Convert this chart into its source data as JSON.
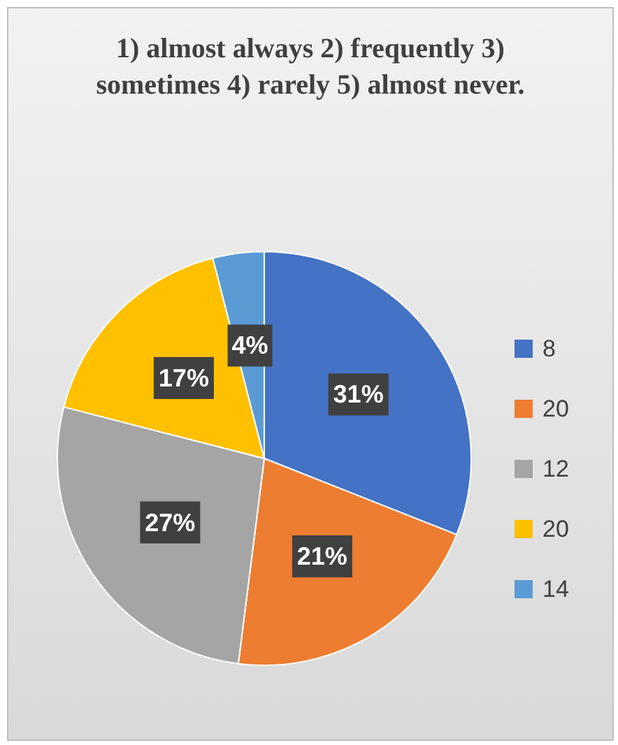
{
  "chart_data": {
    "type": "pie",
    "title": "1) almost always 2) frequently 3) sometimes 4) rarely 5) almost never.",
    "categories": [
      "8",
      "20",
      "12",
      "20",
      "14"
    ],
    "values": [
      31,
      21,
      27,
      17,
      4
    ],
    "value_labels": [
      "31%",
      "21%",
      "27%",
      "17%",
      "4%"
    ],
    "colors": [
      "#4472c4",
      "#ed7d31",
      "#a5a5a5",
      "#ffc000",
      "#5b9bd5"
    ],
    "legend": "right"
  }
}
